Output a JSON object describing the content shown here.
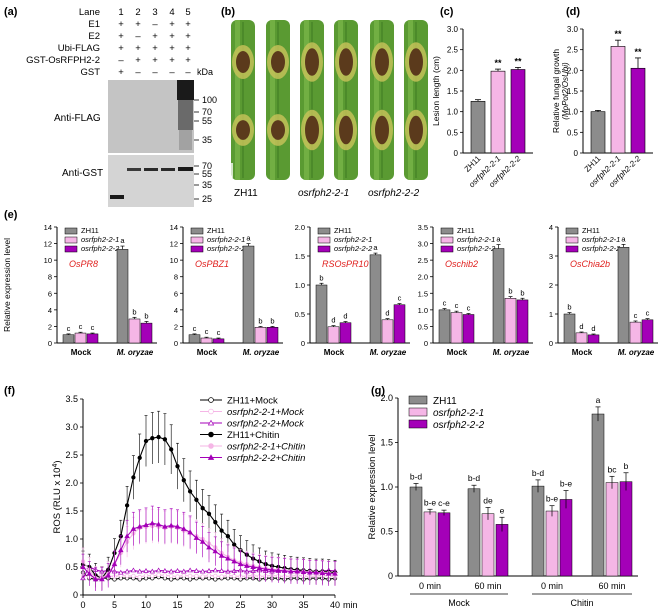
{
  "colors": {
    "zh11": "#8c8c8c",
    "m1": "#f5b6e6",
    "m2": "#a400b8",
    "gene": "#e0211f",
    "leaf": "#4f8a2c"
  },
  "panel_a": {
    "label": "(a)",
    "rows": [
      {
        "name": "Lane",
        "marks": [
          "1",
          "2",
          "3",
          "4",
          "5"
        ]
      },
      {
        "name": "E1",
        "marks": [
          "+",
          "+",
          "–",
          "+",
          "+"
        ]
      },
      {
        "name": "E2",
        "marks": [
          "+",
          "–",
          "+",
          "+",
          "+"
        ]
      },
      {
        "name": "Ubi-FLAG",
        "marks": [
          "+",
          "+",
          "+",
          "+",
          "+"
        ]
      },
      {
        "name": "GST-OsRFPH2-2",
        "marks": [
          "–",
          "+",
          "+",
          "+",
          "+"
        ]
      },
      {
        "name": "GST",
        "marks": [
          "+",
          "–",
          "–",
          "–",
          "–"
        ]
      }
    ],
    "kda_label": "kDa",
    "blot1_label": "Anti-FLAG",
    "blot1_markers": [
      "100",
      "70",
      "55",
      "35"
    ],
    "blot2_label": "Anti-GST",
    "blot2_markers": [
      "70",
      "55",
      "35",
      "25"
    ]
  },
  "panel_b": {
    "label": "(b)",
    "names": [
      "ZH11",
      "osrfph2-2-1",
      "osrfph2-2-2"
    ]
  },
  "chart_data": [
    {
      "id": "c",
      "label": "(c)",
      "type": "bar",
      "categories": [
        "ZH11",
        "osrfph2-2-1",
        "osrfph2-2-2"
      ],
      "values": [
        1.25,
        1.98,
        2.02
      ],
      "errors": [
        0.04,
        0.05,
        0.05
      ],
      "sig": [
        "",
        "**",
        "**"
      ],
      "ylabel": "Lesion length (cm)",
      "ylim": [
        0,
        3
      ],
      "yticks": [
        "0",
        "0.5",
        "1.0",
        "1.5",
        "2.0",
        "2.5",
        "3.0"
      ]
    },
    {
      "id": "d",
      "label": "(d)",
      "type": "bar",
      "categories": [
        "ZH11",
        "osrfph2-2-1",
        "osrfph2-2-2"
      ],
      "values": [
        1.0,
        2.58,
        2.05
      ],
      "errors": [
        0.03,
        0.15,
        0.25
      ],
      "sig": [
        "",
        "**",
        "**"
      ],
      "ylabel": "Relative fungal growth",
      "ylabel2": "(MoPot2/OsUbi)",
      "ylim": [
        0,
        3
      ],
      "yticks": [
        "0",
        "0.5",
        "1.0",
        "1.5",
        "2.0",
        "2.5",
        "3.0"
      ]
    },
    {
      "id": "e",
      "label": "(e)",
      "type": "bar",
      "ylabel": "Relative expression level",
      "legend": [
        "ZH11",
        "osrfph2-2-1",
        "osrfph2-2-2"
      ],
      "groups": [
        "Mock",
        "M. oryzae"
      ],
      "subplots": [
        {
          "gene": "OsPR8",
          "ylim": [
            0,
            14
          ],
          "yticks": [
            "0",
            "2",
            "4",
            "6",
            "8",
            "10",
            "12",
            "14"
          ],
          "mock": [
            1.0,
            1.2,
            1.1
          ],
          "mock_err": [
            0.1,
            0.1,
            0.1
          ],
          "treat": [
            11.3,
            2.9,
            2.4
          ],
          "treat_err": [
            0.4,
            0.2,
            0.2
          ],
          "letters": [
            "c",
            "c",
            "c",
            "a",
            "b",
            "b"
          ]
        },
        {
          "gene": "OsPBZ1",
          "ylim": [
            0,
            14
          ],
          "yticks": [
            "0",
            "2",
            "4",
            "6",
            "8",
            "10",
            "12",
            "14"
          ],
          "mock": [
            1.0,
            0.6,
            0.5
          ],
          "mock_err": [
            0.1,
            0.1,
            0.1
          ],
          "treat": [
            11.7,
            1.9,
            1.9
          ],
          "treat_err": [
            0.3,
            0.1,
            0.1
          ],
          "letters": [
            "c",
            "c",
            "c",
            "a",
            "b",
            "b"
          ]
        },
        {
          "gene": "RSOsPR10",
          "ylim": [
            0,
            2.0
          ],
          "yticks": [
            "0",
            "0.5",
            "1.0",
            "1.5",
            "2.0"
          ],
          "mock": [
            1.0,
            0.28,
            0.35
          ],
          "mock_err": [
            0.03,
            0.02,
            0.02
          ],
          "treat": [
            1.52,
            0.4,
            0.66
          ],
          "treat_err": [
            0.03,
            0.02,
            0.02
          ],
          "letters": [
            "b",
            "d",
            "d",
            "a",
            "d",
            "c"
          ]
        },
        {
          "gene": "Oschib2",
          "ylim": [
            0,
            3.5
          ],
          "yticks": [
            "0",
            "0.5",
            "1.0",
            "1.5",
            "2.0",
            "2.5",
            "3.0",
            "3.5"
          ],
          "mock": [
            1.0,
            0.92,
            0.86
          ],
          "mock_err": [
            0.04,
            0.04,
            0.03
          ],
          "treat": [
            2.85,
            1.35,
            1.3
          ],
          "treat_err": [
            0.12,
            0.05,
            0.05
          ],
          "letters": [
            "c",
            "c",
            "c",
            "a",
            "b",
            "b"
          ]
        },
        {
          "gene": "OsChia2b",
          "ylim": [
            0,
            4
          ],
          "yticks": [
            "0",
            "1",
            "2",
            "3",
            "4"
          ],
          "mock": [
            1.0,
            0.35,
            0.28
          ],
          "mock_err": [
            0.05,
            0.03,
            0.03
          ],
          "treat": [
            3.3,
            0.72,
            0.8
          ],
          "treat_err": [
            0.1,
            0.04,
            0.04
          ],
          "letters": [
            "b",
            "d",
            "d",
            "a",
            "c",
            "c"
          ]
        }
      ]
    },
    {
      "id": "f",
      "label": "(f)",
      "type": "line",
      "xlabel": "min",
      "ylabel": "ROS (RLU x 10",
      "ylabel_sup": "4",
      "xlim": [
        0,
        40
      ],
      "ylim": [
        0,
        3.5
      ],
      "xticks": [
        "0",
        "5",
        "10",
        "15",
        "20",
        "25",
        "30",
        "35",
        "40"
      ],
      "yticks": [
        "0",
        "0.5",
        "1.0",
        "1.5",
        "2.0",
        "2.5",
        "3.0",
        "3.5"
      ],
      "x": [
        0,
        1,
        2,
        3,
        4,
        5,
        6,
        7,
        8,
        9,
        10,
        11,
        12,
        13,
        14,
        15,
        16,
        17,
        18,
        19,
        20,
        21,
        22,
        23,
        24,
        25,
        26,
        27,
        28,
        29,
        30,
        31,
        32,
        33,
        34,
        35,
        36,
        37,
        38,
        39,
        40
      ],
      "series": [
        {
          "name": "ZH11+Mock",
          "color": "#000000",
          "marker": "circle",
          "filled": false,
          "values": [
            0.4,
            0.3,
            0.28,
            0.3,
            0.3,
            0.28,
            0.3,
            0.3,
            0.3,
            0.28,
            0.3,
            0.3,
            0.32,
            0.3,
            0.28,
            0.3,
            0.3,
            0.28,
            0.3,
            0.3,
            0.3,
            0.28,
            0.3,
            0.3,
            0.3,
            0.28,
            0.3,
            0.3,
            0.28,
            0.3,
            0.3,
            0.3,
            0.28,
            0.3,
            0.3,
            0.28,
            0.3,
            0.3,
            0.3,
            0.28,
            0.3
          ]
        },
        {
          "name": "osrfph2-2-1+Mock",
          "color": "#f5b6e6",
          "marker": "circle",
          "filled": false,
          "values": [
            0.35,
            0.32,
            0.34,
            0.36,
            0.34,
            0.33,
            0.35,
            0.34,
            0.34,
            0.32,
            0.35,
            0.34,
            0.36,
            0.35,
            0.34,
            0.33,
            0.35,
            0.34,
            0.34,
            0.33,
            0.35,
            0.34,
            0.33,
            0.35,
            0.34,
            0.33,
            0.34,
            0.35,
            0.33,
            0.34,
            0.35,
            0.34,
            0.33,
            0.34,
            0.35,
            0.34,
            0.33,
            0.34,
            0.35,
            0.34,
            0.33
          ]
        },
        {
          "name": "osrfph2-2-2+Mock",
          "color": "#a400b8",
          "marker": "triangle",
          "filled": false,
          "values": [
            0.3,
            0.5,
            0.45,
            0.42,
            0.44,
            0.42,
            0.4,
            0.42,
            0.44,
            0.42,
            0.43,
            0.42,
            0.44,
            0.43,
            0.42,
            0.43,
            0.42,
            0.44,
            0.43,
            0.42,
            0.43,
            0.44,
            0.43,
            0.42,
            0.43,
            0.44,
            0.42,
            0.43,
            0.44,
            0.43,
            0.42,
            0.43,
            0.44,
            0.42,
            0.43,
            0.44,
            0.43,
            0.42,
            0.43,
            0.44,
            0.43
          ]
        },
        {
          "name": "ZH11+Chitin",
          "color": "#000000",
          "marker": "circle",
          "filled": true,
          "values": [
            0.55,
            0.5,
            0.35,
            0.3,
            0.45,
            0.75,
            1.05,
            1.6,
            2.1,
            2.45,
            2.75,
            2.8,
            2.82,
            2.78,
            2.6,
            2.3,
            2.05,
            1.85,
            1.7,
            1.55,
            1.45,
            1.3,
            1.15,
            1.05,
            0.9,
            0.8,
            0.72,
            0.65,
            0.6,
            0.55,
            0.52,
            0.5,
            0.48,
            0.46,
            0.45,
            0.44,
            0.43,
            0.42,
            0.42,
            0.41,
            0.4
          ]
        },
        {
          "name": "osrfph2-2-1+Chitin",
          "color": "#f5b6e6",
          "marker": "circle",
          "filled": true,
          "values": [
            0.6,
            0.45,
            0.3,
            0.3,
            0.38,
            0.55,
            0.75,
            0.95,
            1.1,
            1.2,
            1.22,
            1.23,
            1.22,
            1.2,
            1.22,
            1.2,
            1.15,
            1.1,
            1.05,
            1.0,
            0.92,
            0.85,
            0.75,
            0.68,
            0.62,
            0.58,
            0.55,
            0.52,
            0.5,
            0.48,
            0.46,
            0.45,
            0.44,
            0.43,
            0.42,
            0.42,
            0.41,
            0.4,
            0.4,
            0.39,
            0.38
          ]
        },
        {
          "name": "osrfph2-2-2+Chitin",
          "color": "#a400b8",
          "marker": "triangle",
          "filled": true,
          "values": [
            0.5,
            0.38,
            0.28,
            0.28,
            0.35,
            0.55,
            0.8,
            1.05,
            1.18,
            1.22,
            1.25,
            1.28,
            1.26,
            1.22,
            1.24,
            1.22,
            1.18,
            1.12,
            1.02,
            0.95,
            0.85,
            0.78,
            0.7,
            0.65,
            0.6,
            0.55,
            0.52,
            0.5,
            0.48,
            0.46,
            0.45,
            0.44,
            0.43,
            0.42,
            0.42,
            0.41,
            0.4,
            0.4,
            0.39,
            0.38,
            0.38
          ]
        }
      ]
    },
    {
      "id": "g",
      "label": "(g)",
      "type": "bar",
      "ylabel": "Relative expression level",
      "ylim": [
        0,
        2.0
      ],
      "yticks": [
        "0",
        "0.5",
        "1.0",
        "1.5",
        "2.0"
      ],
      "legend": [
        "ZH11",
        "osrfph2-2-1",
        "osrfph2-2-2"
      ],
      "timepoints": [
        "0 min",
        "60 min",
        "0 min",
        "60 min"
      ],
      "treatments": [
        "Mock",
        "Chitin"
      ],
      "values": [
        [
          1.0,
          0.72,
          0.71
        ],
        [
          0.98,
          0.7,
          0.58
        ],
        [
          1.01,
          0.73,
          0.86
        ],
        [
          1.82,
          1.05,
          1.06
        ]
      ],
      "errors": [
        [
          0.04,
          0.03,
          0.03
        ],
        [
          0.04,
          0.07,
          0.08
        ],
        [
          0.07,
          0.06,
          0.1
        ],
        [
          0.08,
          0.07,
          0.1
        ]
      ],
      "letters": [
        [
          "b-d",
          "b-e",
          "c-e"
        ],
        [
          "b-d",
          "de",
          "e"
        ],
        [
          "b-d",
          "b-e",
          "b-e"
        ],
        [
          "a",
          "bc",
          "b"
        ]
      ]
    }
  ]
}
